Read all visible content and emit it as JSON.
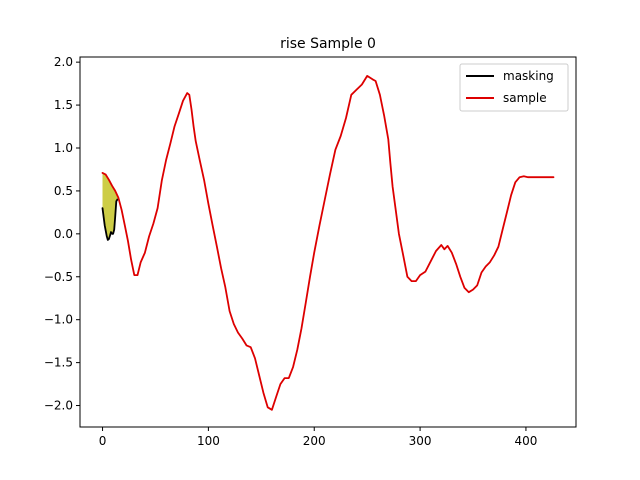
{
  "chart_data": {
    "type": "line",
    "title": "rise Sample 0",
    "xlabel": "",
    "ylabel": "",
    "xlim": [
      -21.3,
      447.3
    ],
    "ylim": [
      -2.25,
      2.06
    ],
    "xticks": [
      0,
      100,
      200,
      300,
      400
    ],
    "yticks": [
      -2.0,
      -1.5,
      -1.0,
      -0.5,
      0.0,
      0.5,
      1.0,
      1.5,
      2.0
    ],
    "xtick_labels": [
      "0",
      "100",
      "200",
      "300",
      "400"
    ],
    "ytick_labels": [
      "−2.0",
      "−1.5",
      "−1.0",
      "−0.5",
      "0.0",
      "0.5",
      "1.0",
      "1.5",
      "2.0"
    ],
    "grid": false,
    "legend_position": "top-right",
    "series": [
      {
        "name": "masking",
        "color": "#000000",
        "x": [
          0,
          2,
          4,
          5,
          6,
          7,
          8,
          9,
          10,
          11,
          12,
          13,
          14
        ],
        "y": [
          0.3,
          0.1,
          -0.03,
          -0.07,
          -0.06,
          -0.02,
          0.02,
          0.0,
          0.0,
          0.05,
          0.2,
          0.38,
          0.4
        ]
      },
      {
        "name": "sample",
        "color": "#dd0000",
        "x": [
          0,
          3,
          6,
          9,
          12,
          15,
          18,
          21,
          24,
          27,
          30,
          33,
          36,
          40,
          44,
          48,
          52,
          56,
          60,
          64,
          68,
          72,
          76,
          80,
          82,
          84,
          86,
          88,
          92,
          96,
          100,
          104,
          108,
          112,
          116,
          120,
          124,
          128,
          132,
          136,
          140,
          144,
          148,
          152,
          156,
          160,
          164,
          168,
          172,
          176,
          180,
          184,
          188,
          192,
          196,
          200,
          205,
          210,
          215,
          220,
          225,
          230,
          235,
          240,
          245,
          250,
          255,
          258,
          262,
          266,
          270,
          272,
          274,
          277,
          280,
          284,
          288,
          292,
          296,
          300,
          305,
          310,
          315,
          320,
          323,
          326,
          330,
          334,
          338,
          342,
          346,
          350,
          354,
          358,
          362,
          366,
          370,
          374,
          378,
          382,
          386,
          390,
          394,
          398,
          402,
          406,
          410,
          414,
          418,
          422,
          424,
          426
        ],
        "y": [
          0.71,
          0.69,
          0.63,
          0.56,
          0.5,
          0.42,
          0.28,
          0.1,
          -0.08,
          -0.3,
          -0.48,
          -0.48,
          -0.33,
          -0.22,
          -0.03,
          0.12,
          0.3,
          0.62,
          0.86,
          1.05,
          1.25,
          1.4,
          1.55,
          1.64,
          1.62,
          1.45,
          1.25,
          1.08,
          0.85,
          0.62,
          0.35,
          0.1,
          -0.15,
          -0.4,
          -0.62,
          -0.9,
          -1.05,
          -1.15,
          -1.22,
          -1.3,
          -1.32,
          -1.45,
          -1.65,
          -1.85,
          -2.02,
          -2.05,
          -1.9,
          -1.75,
          -1.68,
          -1.68,
          -1.55,
          -1.35,
          -1.1,
          -0.8,
          -0.5,
          -0.22,
          0.1,
          0.4,
          0.7,
          0.98,
          1.14,
          1.35,
          1.62,
          1.68,
          1.74,
          1.84,
          1.8,
          1.78,
          1.62,
          1.38,
          1.1,
          0.82,
          0.55,
          0.28,
          0.0,
          -0.25,
          -0.5,
          -0.55,
          -0.55,
          -0.48,
          -0.44,
          -0.32,
          -0.2,
          -0.13,
          -0.18,
          -0.14,
          -0.22,
          -0.35,
          -0.5,
          -0.63,
          -0.68,
          -0.65,
          -0.6,
          -0.45,
          -0.38,
          -0.33,
          -0.25,
          -0.15,
          0.05,
          0.25,
          0.45,
          0.6,
          0.66,
          0.67,
          0.66,
          0.66,
          0.66,
          0.66,
          0.66,
          0.66,
          0.66,
          0.66
        ]
      }
    ],
    "fill_between": {
      "color": "#c8c832",
      "x_start": 0,
      "x_end": 14
    }
  }
}
